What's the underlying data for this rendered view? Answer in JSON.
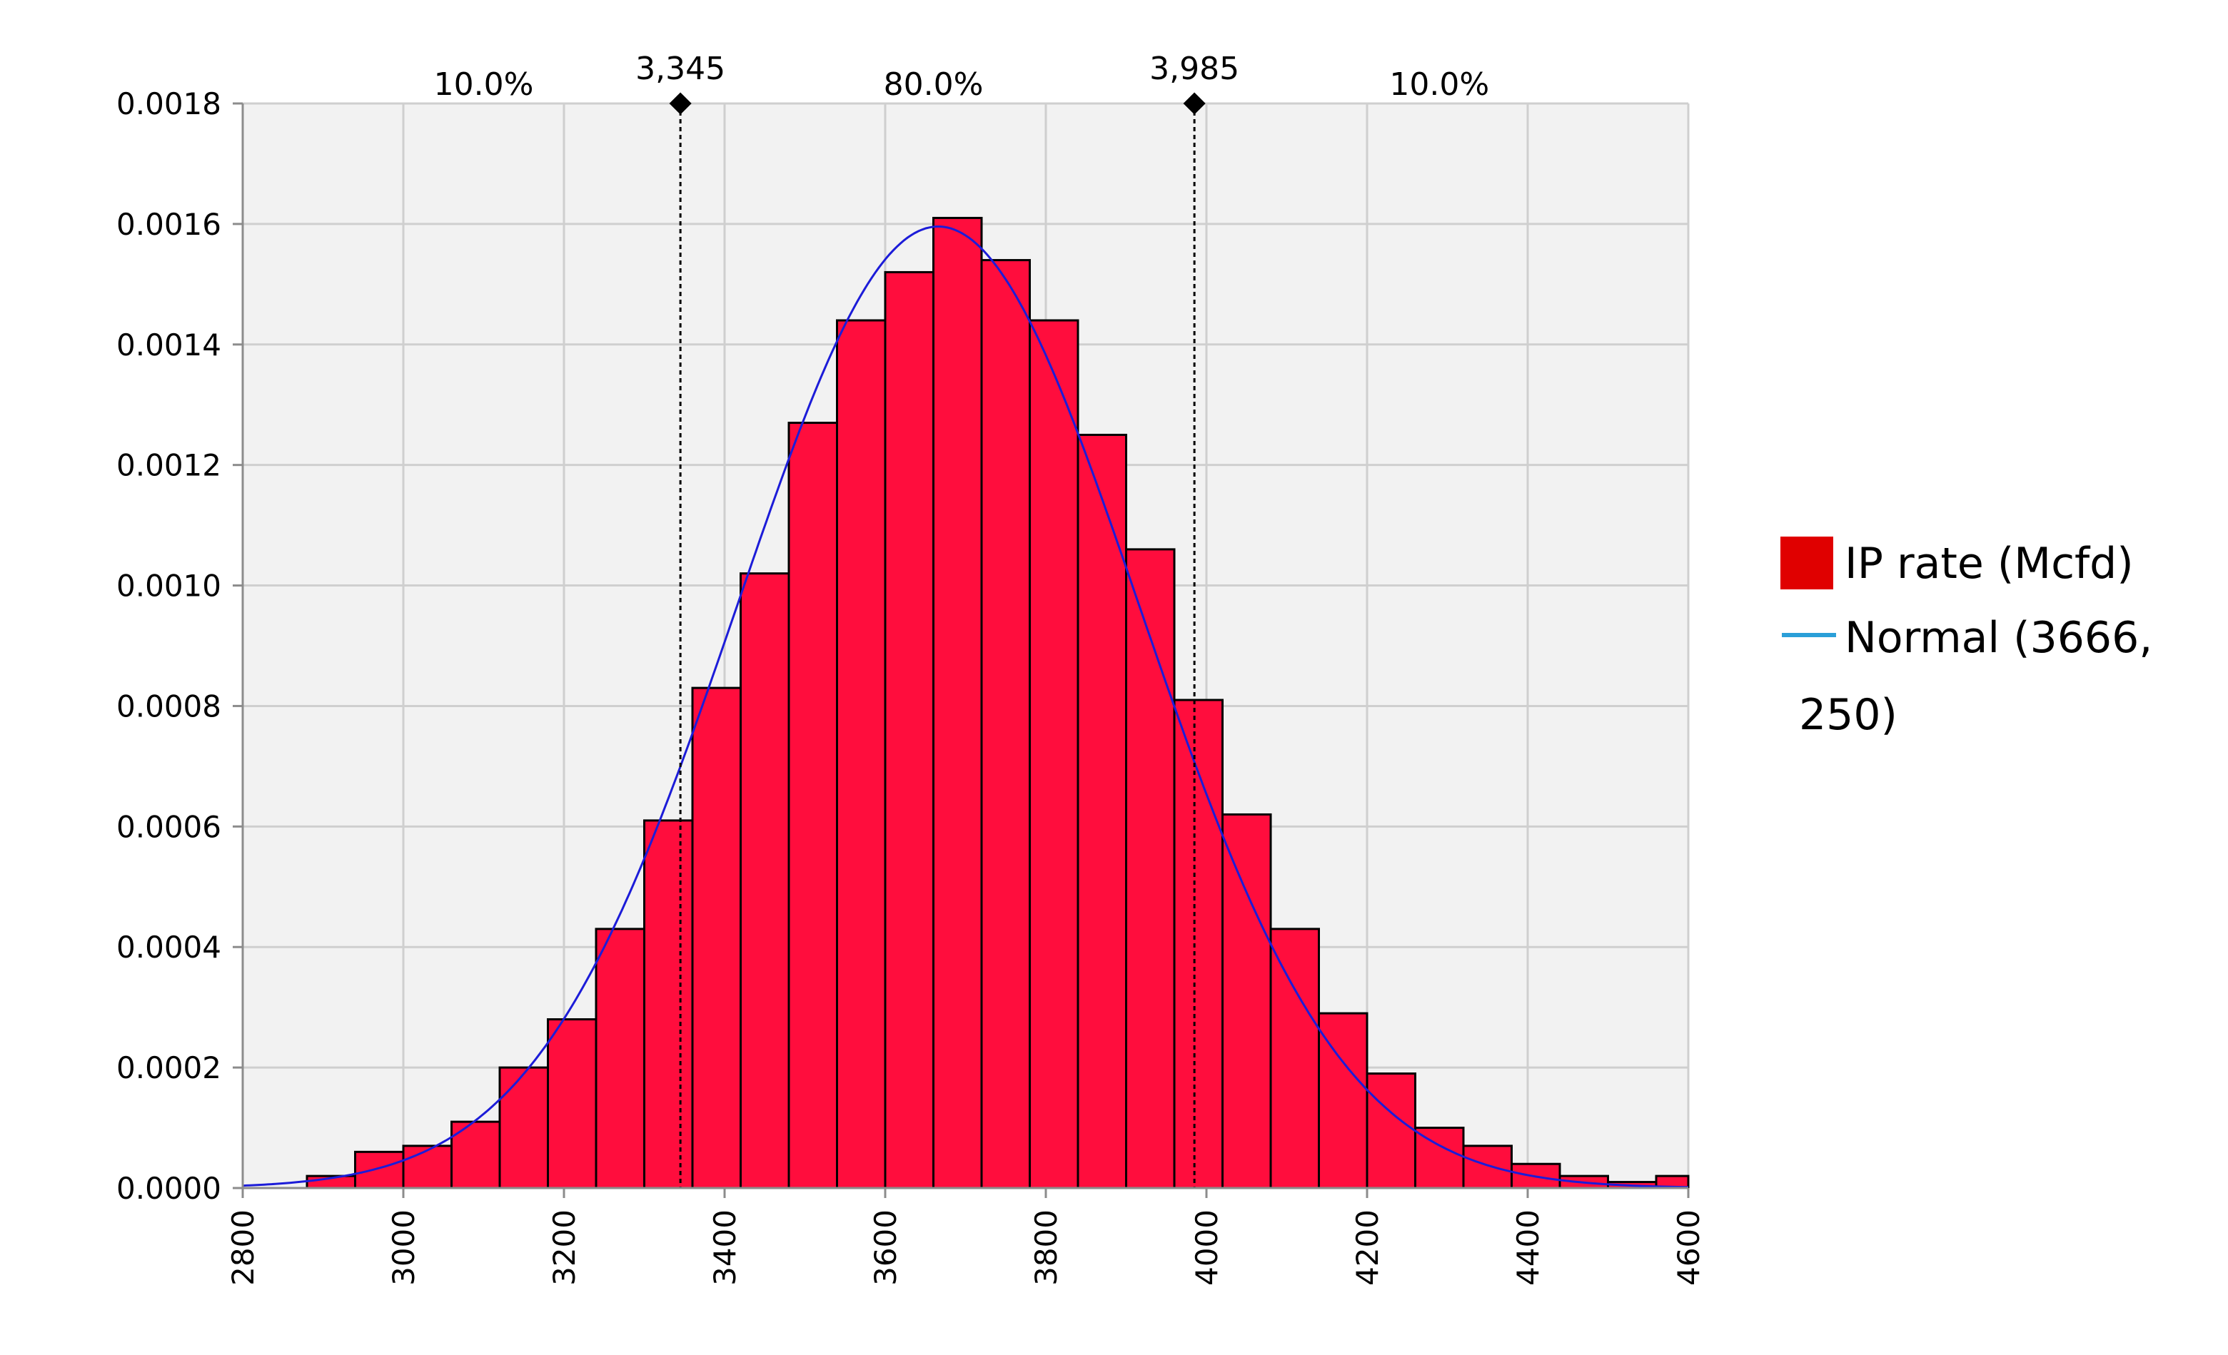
{
  "chart_data": {
    "type": "bar",
    "subtype": "histogram-with-fitted-curve",
    "xlim": [
      2800,
      4600
    ],
    "ylim": [
      0,
      0.0018
    ],
    "x_ticks": [
      "2800",
      "3000",
      "3200",
      "3400",
      "3600",
      "3800",
      "4000",
      "4200",
      "4400",
      "4600"
    ],
    "y_ticks": [
      "0.0000",
      "0.0002",
      "0.0004",
      "0.0006",
      "0.0008",
      "0.0010",
      "0.0012",
      "0.0014",
      "0.0016",
      "0.0018"
    ],
    "bin_width": 60,
    "bins": [
      {
        "x0": 2880,
        "x1": 2940,
        "density": 2e-05
      },
      {
        "x0": 2940,
        "x1": 3000,
        "density": 6e-05
      },
      {
        "x0": 3000,
        "x1": 3060,
        "density": 7e-05
      },
      {
        "x0": 3060,
        "x1": 3120,
        "density": 0.00011
      },
      {
        "x0": 3120,
        "x1": 3180,
        "density": 0.0002
      },
      {
        "x0": 3180,
        "x1": 3240,
        "density": 0.00028
      },
      {
        "x0": 3240,
        "x1": 3300,
        "density": 0.00043
      },
      {
        "x0": 3300,
        "x1": 3360,
        "density": 0.00061
      },
      {
        "x0": 3360,
        "x1": 3420,
        "density": 0.00083
      },
      {
        "x0": 3420,
        "x1": 3480,
        "density": 0.00102
      },
      {
        "x0": 3480,
        "x1": 3540,
        "density": 0.00127
      },
      {
        "x0": 3540,
        "x1": 3600,
        "density": 0.00144
      },
      {
        "x0": 3600,
        "x1": 3660,
        "density": 0.00152
      },
      {
        "x0": 3660,
        "x1": 3720,
        "density": 0.00161
      },
      {
        "x0": 3720,
        "x1": 3780,
        "density": 0.00154
      },
      {
        "x0": 3780,
        "x1": 3840,
        "density": 0.00144
      },
      {
        "x0": 3840,
        "x1": 3900,
        "density": 0.00125
      },
      {
        "x0": 3900,
        "x1": 3960,
        "density": 0.00106
      },
      {
        "x0": 3960,
        "x1": 4020,
        "density": 0.00081
      },
      {
        "x0": 4020,
        "x1": 4080,
        "density": 0.00062
      },
      {
        "x0": 4080,
        "x1": 4140,
        "density": 0.00043
      },
      {
        "x0": 4140,
        "x1": 4200,
        "density": 0.00029
      },
      {
        "x0": 4200,
        "x1": 4260,
        "density": 0.00019
      },
      {
        "x0": 4260,
        "x1": 4320,
        "density": 0.0001
      },
      {
        "x0": 4320,
        "x1": 4380,
        "density": 7e-05
      },
      {
        "x0": 4380,
        "x1": 4440,
        "density": 4e-05
      },
      {
        "x0": 4440,
        "x1": 4500,
        "density": 2e-05
      },
      {
        "x0": 4500,
        "x1": 4560,
        "density": 1e-05
      },
      {
        "x0": 4560,
        "x1": 4620,
        "density": 2e-05
      }
    ],
    "fit": {
      "name": "Normal (3666, 250)",
      "mean": 3666,
      "sd": 250
    },
    "markers": [
      {
        "x": 3345,
        "label": "3,345"
      },
      {
        "x": 3985,
        "label": "3,985"
      }
    ],
    "region_labels": [
      {
        "x": 3100,
        "label": "10.0%"
      },
      {
        "x": 3660,
        "label": "80.0%"
      },
      {
        "x": 4290,
        "label": "10.0%"
      }
    ],
    "legend": {
      "position": "right",
      "entries": [
        {
          "label": "IP rate (Mcfd)",
          "color": "#e00000",
          "kind": "bar"
        },
        {
          "label": "Normal (3666,",
          "label_cont": "250)",
          "color": "#2a9fd8",
          "kind": "line"
        }
      ]
    },
    "grid": true,
    "colors": {
      "bar_fill": "#ff0d3d",
      "bar_edge": "#000000",
      "curve": "#1c1cd8",
      "plot_background": "#f2f2f2",
      "grid": "#cfcfcf"
    }
  }
}
